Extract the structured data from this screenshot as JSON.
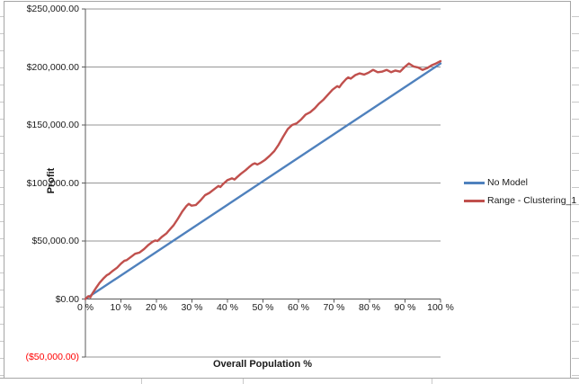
{
  "colors": {
    "background": "#ffffff",
    "chart_border": "#a6a6a6",
    "gridline": "#969696",
    "axis": "#595959",
    "tick_label": "#1a1a1a",
    "negative_label": "#ff0000",
    "series_blue": "#4F81BD",
    "series_red": "#C0504D"
  },
  "chart_data": {
    "type": "line",
    "title": "",
    "xlabel": "Overall Population %",
    "ylabel": "Profit",
    "xlim": [
      0,
      100
    ],
    "ylim": [
      -50000,
      250000
    ],
    "grid": true,
    "legend_position": "right",
    "x_ticks": [
      {
        "label": "0 %",
        "value": 0
      },
      {
        "label": "10 %",
        "value": 10
      },
      {
        "label": "20 %",
        "value": 20
      },
      {
        "label": "30 %",
        "value": 30
      },
      {
        "label": "40 %",
        "value": 40
      },
      {
        "label": "50 %",
        "value": 50
      },
      {
        "label": "60 %",
        "value": 60
      },
      {
        "label": "70 %",
        "value": 70
      },
      {
        "label": "80 %",
        "value": 80
      },
      {
        "label": "90 %",
        "value": 90
      },
      {
        "label": "100 %",
        "value": 100
      }
    ],
    "y_ticks": [
      {
        "label": "$250,000.00",
        "value": 250000,
        "color": "#1a1a1a"
      },
      {
        "label": "$200,000.00",
        "value": 200000,
        "color": "#1a1a1a"
      },
      {
        "label": "$150,000.00",
        "value": 150000,
        "color": "#1a1a1a"
      },
      {
        "label": "$100,000.00",
        "value": 100000,
        "color": "#1a1a1a"
      },
      {
        "label": "$50,000.00",
        "value": 50000,
        "color": "#1a1a1a"
      },
      {
        "label": "$0.00",
        "value": 0,
        "color": "#1a1a1a"
      },
      {
        "label": "($50,000.00)",
        "value": -50000,
        "color": "#ff0000"
      }
    ],
    "series": [
      {
        "name": "No Model",
        "color": "#4F81BD",
        "points": [
          [
            0,
            0
          ],
          [
            100,
            203000
          ]
        ]
      },
      {
        "name": "Range - Clustering_1",
        "color": "#C0504D",
        "points": [
          [
            0,
            0
          ],
          [
            0.8,
            2500
          ],
          [
            1.4,
            1500
          ],
          [
            2,
            5000
          ],
          [
            3,
            9500
          ],
          [
            4,
            14000
          ],
          [
            5,
            17500
          ],
          [
            6,
            20500
          ],
          [
            6.6,
            21500
          ],
          [
            7.6,
            24000
          ],
          [
            8.9,
            27000
          ],
          [
            10,
            30500
          ],
          [
            11,
            33000
          ],
          [
            11.6,
            33500
          ],
          [
            12.9,
            36500
          ],
          [
            14,
            39000
          ],
          [
            15.2,
            40000
          ],
          [
            16.5,
            43000
          ],
          [
            17.7,
            46500
          ],
          [
            19,
            49500
          ],
          [
            19.7,
            50500
          ],
          [
            20.3,
            50000
          ],
          [
            21.5,
            53500
          ],
          [
            22.8,
            56500
          ],
          [
            23.5,
            59000
          ],
          [
            24.8,
            63500
          ],
          [
            26,
            69000
          ],
          [
            27.3,
            75500
          ],
          [
            28.4,
            80000
          ],
          [
            29.1,
            82000
          ],
          [
            29.9,
            80500
          ],
          [
            31.1,
            81000
          ],
          [
            32.4,
            85000
          ],
          [
            33.7,
            89500
          ],
          [
            34.9,
            91500
          ],
          [
            36.2,
            94500
          ],
          [
            37.5,
            97500
          ],
          [
            38,
            96500
          ],
          [
            38.7,
            99000
          ],
          [
            40,
            102500
          ],
          [
            41.3,
            104000
          ],
          [
            42,
            103000
          ],
          [
            42.5,
            104500
          ],
          [
            43.8,
            108000
          ],
          [
            45.1,
            111000
          ],
          [
            46,
            113500
          ],
          [
            47,
            116000
          ],
          [
            47.7,
            117000
          ],
          [
            48.4,
            116000
          ],
          [
            49.4,
            117500
          ],
          [
            50.6,
            120000
          ],
          [
            51.9,
            123500
          ],
          [
            53.2,
            127500
          ],
          [
            54.4,
            133000
          ],
          [
            55.7,
            140000
          ],
          [
            57,
            146500
          ],
          [
            58.2,
            150000
          ],
          [
            59.5,
            151500
          ],
          [
            60.8,
            155000
          ],
          [
            62,
            159000
          ],
          [
            63.3,
            161000
          ],
          [
            64.6,
            164500
          ],
          [
            65.8,
            168500
          ],
          [
            67.1,
            172000
          ],
          [
            68.4,
            176500
          ],
          [
            69.6,
            180500
          ],
          [
            70.9,
            183500
          ],
          [
            71.5,
            182500
          ],
          [
            72.2,
            185500
          ],
          [
            73.4,
            189500
          ],
          [
            74,
            191000
          ],
          [
            74.7,
            190000
          ],
          [
            76,
            193000
          ],
          [
            77.2,
            194500
          ],
          [
            78.5,
            193500
          ],
          [
            79.7,
            195000
          ],
          [
            81,
            197500
          ],
          [
            82.3,
            195500
          ],
          [
            83.5,
            196000
          ],
          [
            84.8,
            197500
          ],
          [
            86.1,
            195500
          ],
          [
            87.3,
            197000
          ],
          [
            88.6,
            196000
          ],
          [
            89.9,
            200000
          ],
          [
            91.1,
            203000
          ],
          [
            92.4,
            200500
          ],
          [
            93.7,
            199500
          ],
          [
            94.9,
            197500
          ],
          [
            96.2,
            199000
          ],
          [
            97.5,
            201500
          ],
          [
            98.7,
            203000
          ],
          [
            100,
            205000
          ]
        ]
      }
    ]
  }
}
